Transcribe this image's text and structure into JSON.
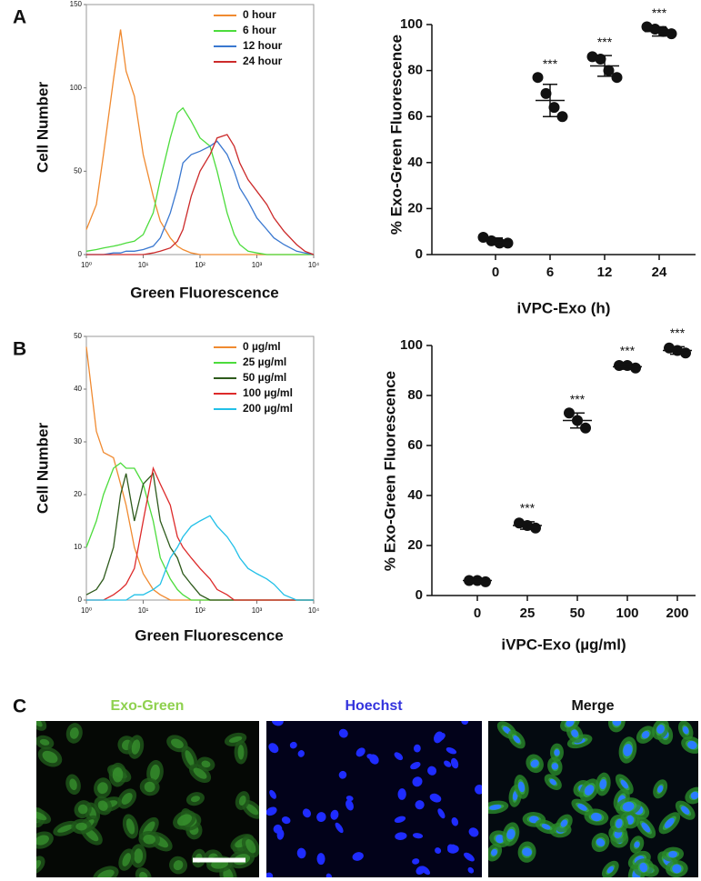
{
  "chart_data": [
    {
      "type": "line",
      "panel": "A",
      "ylabel": "Cell Number",
      "xlabel": "Green Fluorescence",
      "xscale": "log",
      "xlim": [
        1,
        10000
      ],
      "xticks": [
        {
          "value": 1,
          "label": "10⁰"
        },
        {
          "value": 10,
          "label": "10¹"
        },
        {
          "value": 100,
          "label": "10²"
        },
        {
          "value": 1000,
          "label": "10³"
        },
        {
          "value": 10000,
          "label": "10⁴"
        }
      ],
      "ylim": [
        0,
        150
      ],
      "yticks": [
        0,
        50,
        100,
        150
      ],
      "legend": "upper right",
      "x": [
        1,
        1.5,
        2,
        3,
        4,
        5,
        7,
        10,
        15,
        20,
        30,
        40,
        50,
        70,
        100,
        150,
        200,
        300,
        400,
        500,
        700,
        1000,
        1500,
        2000,
        3000,
        5000,
        7000,
        10000
      ],
      "series": [
        {
          "name": "0 hour",
          "color": "#f08a30",
          "values": [
            15,
            30,
            60,
            105,
            135,
            110,
            95,
            60,
            35,
            20,
            10,
            5,
            3,
            1,
            0,
            0,
            0,
            0,
            0,
            0,
            0,
            0,
            0,
            0,
            0,
            0,
            0,
            0
          ]
        },
        {
          "name": "6 hour",
          "color": "#4cdc3c",
          "values": [
            2,
            3,
            4,
            5,
            6,
            7,
            8,
            12,
            25,
            45,
            70,
            85,
            88,
            80,
            70,
            65,
            50,
            25,
            12,
            6,
            2,
            1,
            0,
            0,
            0,
            0,
            0,
            0
          ]
        },
        {
          "name": "12 hour",
          "color": "#3a78d0",
          "values": [
            0,
            0,
            0,
            1,
            1,
            2,
            2,
            3,
            5,
            10,
            25,
            40,
            55,
            60,
            62,
            65,
            68,
            60,
            50,
            40,
            32,
            22,
            15,
            10,
            6,
            2,
            1,
            0
          ]
        },
        {
          "name": "24 hour",
          "color": "#cc2a2a",
          "values": [
            0,
            0,
            0,
            0,
            0,
            0,
            0,
            0,
            1,
            2,
            4,
            8,
            15,
            35,
            50,
            60,
            70,
            72,
            65,
            55,
            45,
            38,
            30,
            22,
            14,
            6,
            2,
            0
          ]
        }
      ]
    },
    {
      "type": "dot_plot",
      "panel": null,
      "ylabel": "% Exo-Green Fluorescence",
      "xlabel": "iVPC-Exo (h)",
      "categories": [
        "0",
        "6",
        "12",
        "24"
      ],
      "ylim": [
        0,
        100
      ],
      "yticks": [
        0,
        20,
        40,
        60,
        80,
        100
      ],
      "points": [
        [
          7.5,
          6,
          5,
          5
        ],
        [
          77,
          70,
          64,
          60
        ],
        [
          86,
          85,
          80,
          77
        ],
        [
          99,
          98,
          97,
          96
        ]
      ],
      "means": [
        6,
        67,
        82,
        97
      ],
      "errors": [
        1.2,
        7,
        4.5,
        2
      ],
      "annotations": [
        null,
        "***",
        "***",
        "***"
      ],
      "color": "#111111"
    },
    {
      "type": "line",
      "panel": "B",
      "ylabel": "Cell Number",
      "xlabel": "Green Fluorescence",
      "xscale": "log",
      "xlim": [
        1,
        10000
      ],
      "xticks": [
        {
          "value": 1,
          "label": "10⁰"
        },
        {
          "value": 10,
          "label": "10¹"
        },
        {
          "value": 100,
          "label": "10²"
        },
        {
          "value": 1000,
          "label": "10³"
        },
        {
          "value": 10000,
          "label": "10⁴"
        }
      ],
      "ylim": [
        0,
        50
      ],
      "yticks": [
        0,
        10,
        20,
        30,
        40,
        50
      ],
      "legend": "upper right",
      "x": [
        1,
        1.5,
        2,
        3,
        4,
        5,
        7,
        10,
        15,
        20,
        30,
        40,
        50,
        70,
        100,
        150,
        200,
        300,
        400,
        500,
        700,
        1000,
        1500,
        2000,
        3000,
        5000,
        7000,
        10000
      ],
      "series": [
        {
          "name": "0 µg/ml",
          "color": "#f08a30",
          "values": [
            48,
            32,
            28,
            27,
            22,
            18,
            10,
            5,
            2,
            1,
            0,
            0,
            0,
            0,
            0,
            0,
            0,
            0,
            0,
            0,
            0,
            0,
            0,
            0,
            0,
            0,
            0,
            0
          ]
        },
        {
          "name": "25 µg/ml",
          "color": "#4cdc3c",
          "values": [
            10,
            15,
            20,
            25,
            26,
            25,
            25,
            22,
            15,
            8,
            4,
            2,
            1,
            0,
            0,
            0,
            0,
            0,
            0,
            0,
            0,
            0,
            0,
            0,
            0,
            0,
            0,
            0
          ]
        },
        {
          "name": "50 µg/ml",
          "color": "#2e5a1c",
          "values": [
            1,
            2,
            4,
            10,
            20,
            24,
            15,
            22,
            24,
            15,
            10,
            8,
            5,
            3,
            1,
            0,
            0,
            0,
            0,
            0,
            0,
            0,
            0,
            0,
            0,
            0,
            0,
            0
          ]
        },
        {
          "name": "100 µg/ml",
          "color": "#dd2a2a",
          "values": [
            0,
            0,
            0,
            1,
            2,
            3,
            6,
            15,
            25,
            22,
            18,
            12,
            10,
            8,
            6,
            4,
            2,
            1,
            0,
            0,
            0,
            0,
            0,
            0,
            0,
            0,
            0,
            0
          ]
        },
        {
          "name": "200 µg/ml",
          "color": "#22c0e8",
          "values": [
            0,
            0,
            0,
            0,
            0,
            0,
            1,
            1,
            2,
            3,
            8,
            10,
            12,
            14,
            15,
            16,
            14,
            12,
            10,
            8,
            6,
            5,
            4,
            3,
            1,
            0,
            0,
            0
          ]
        }
      ]
    },
    {
      "type": "dot_plot",
      "panel": null,
      "ylabel": "% Exo-Green Fluorescence",
      "xlabel": "iVPC-Exo (µg/ml)",
      "categories": [
        "0",
        "25",
        "50",
        "100",
        "200"
      ],
      "ylim": [
        0,
        100
      ],
      "yticks": [
        0,
        20,
        40,
        60,
        80,
        100
      ],
      "points": [
        [
          6,
          6,
          5.5
        ],
        [
          29,
          28,
          27
        ],
        [
          73,
          70,
          67
        ],
        [
          92,
          92,
          91
        ],
        [
          99,
          98,
          97
        ]
      ],
      "means": [
        6,
        28,
        70,
        91.5,
        98
      ],
      "errors": [
        0.3,
        1.5,
        3,
        1,
        1.5
      ],
      "annotations": [
        null,
        "***",
        "***",
        "***",
        "***"
      ],
      "color": "#111111"
    }
  ],
  "panel_c": {
    "panel": "C",
    "images": [
      "Exo-Green",
      "Hoechst",
      "Merge"
    ]
  }
}
